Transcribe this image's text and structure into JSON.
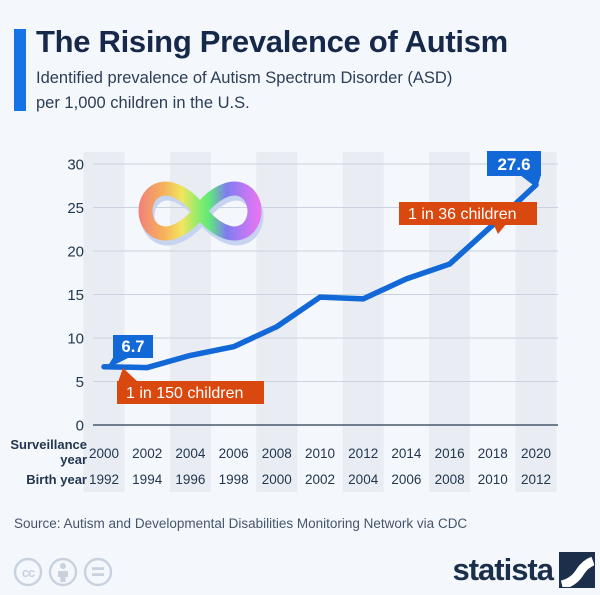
{
  "header": {
    "title": "The Rising Prevalence of Autism",
    "subtitle": "Identified prevalence of Autism Spectrum Disorder (ASD)\nper 1,000 children in the U.S.",
    "accent_color": "#1473e6"
  },
  "chart_data": {
    "type": "line",
    "title": "Identified ASD prevalence per 1,000 children in the U.S.",
    "categories_label_rows": {
      "surveillance_label": "Surveillance\nyear",
      "birth_label": "Birth year"
    },
    "surveillance_years": [
      "2000",
      "2002",
      "2004",
      "2006",
      "2008",
      "2010",
      "2012",
      "2014",
      "2016",
      "2018",
      "2020"
    ],
    "birth_years": [
      "1992",
      "1994",
      "1996",
      "1998",
      "2000",
      "2002",
      "2004",
      "2006",
      "2008",
      "2010",
      "2012"
    ],
    "series": [
      {
        "name": "ASD prevalence per 1,000 children",
        "color": "#1268d6",
        "values": [
          6.7,
          6.6,
          8.0,
          9.0,
          11.3,
          14.7,
          14.5,
          16.8,
          18.5,
          23.0,
          27.6
        ]
      }
    ],
    "y_axis": {
      "ticks": [
        0,
        5,
        10,
        15,
        20,
        25,
        30
      ],
      "range": [
        0,
        30
      ]
    },
    "gridlines": true,
    "stripe_columns": "every-other-starting-2000",
    "annotations": [
      {
        "id": "start-value",
        "text": "6.7",
        "style": "value",
        "color": "#1268d6"
      },
      {
        "id": "start-ratio",
        "text": "1 in 150 children",
        "style": "ratio",
        "color": "#d9480f"
      },
      {
        "id": "end-ratio",
        "text": "1 in 36 children",
        "style": "ratio",
        "color": "#d9480f"
      },
      {
        "id": "end-value",
        "text": "27.6",
        "style": "value",
        "color": "#1268d6"
      }
    ],
    "colors": {
      "line": "#1268d6",
      "stripe": "#e9edf3",
      "gridline": "#c9d2de",
      "zero_line": "#46586e",
      "tick_text": "#22374f"
    }
  },
  "footer": {
    "source": "Source: Autism and Developmental Disabilities Monitoring Network via CDC",
    "license_icons": [
      {
        "name": "cc",
        "glyph": "cc"
      },
      {
        "name": "attribution"
      },
      {
        "name": "no-derivatives"
      }
    ],
    "brand": "statista"
  }
}
